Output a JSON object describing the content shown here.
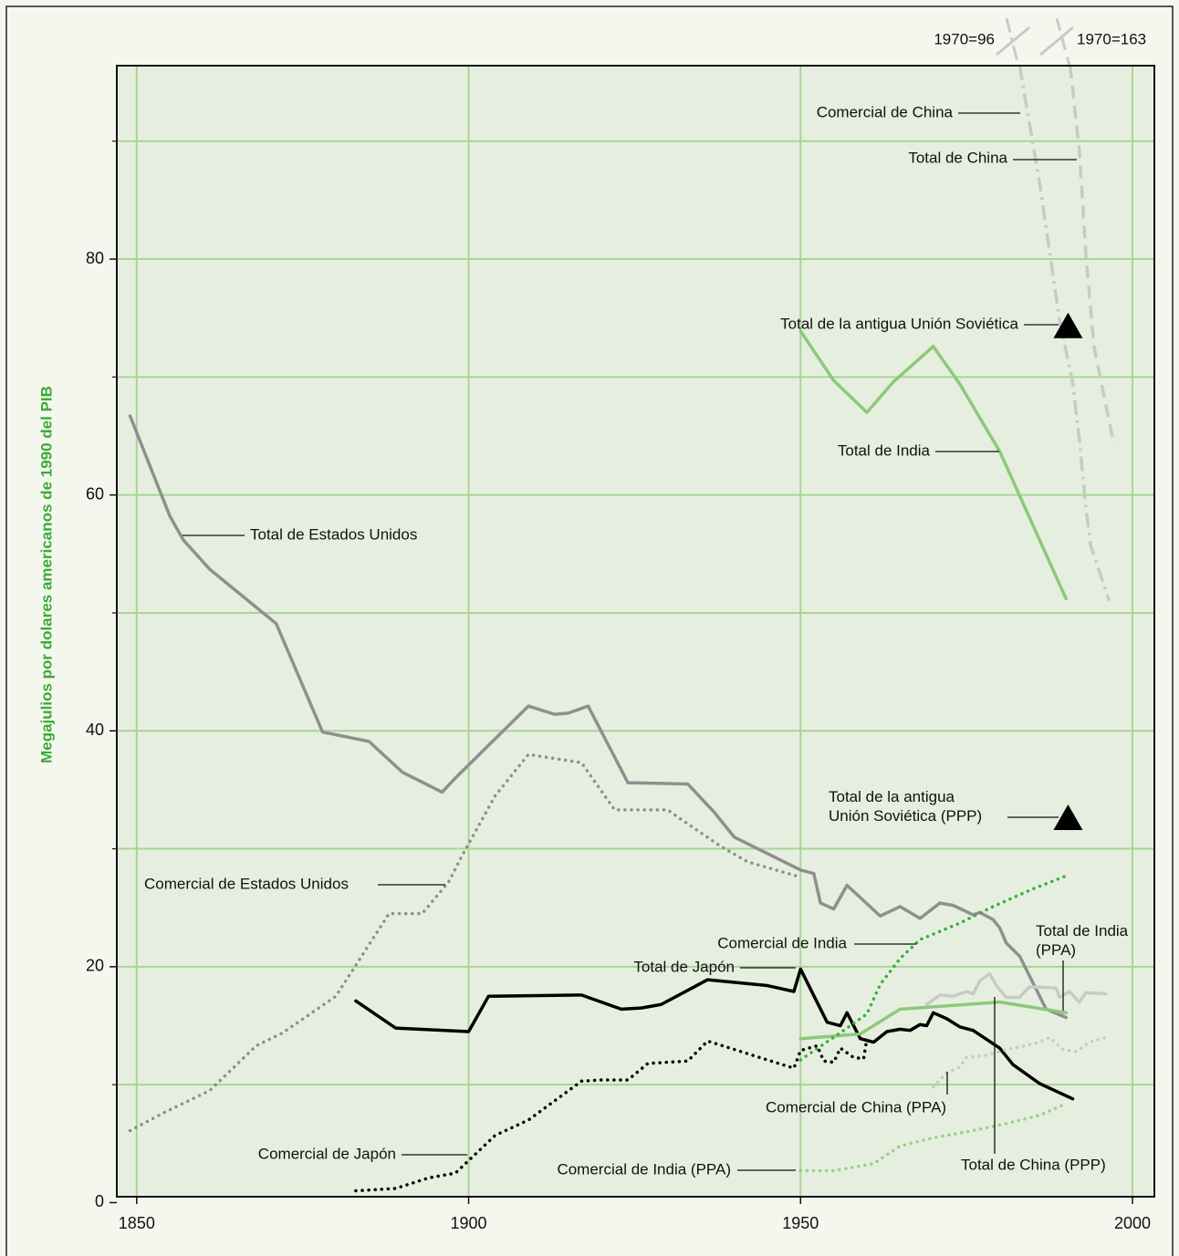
{
  "chart_data": {
    "type": "line",
    "y_label": "Megajulios por dolares americanos de 1990 del PIB",
    "xlim": [
      1847,
      2003.3
    ],
    "xticks": [
      1850,
      1900,
      1950,
      2000
    ],
    "ylim": [
      0.5,
      96.4
    ],
    "yticks": [
      0,
      20,
      40,
      60,
      80
    ],
    "yminor": [
      10,
      30,
      50,
      70,
      90
    ],
    "grid": true,
    "annotations": [
      "1970=96",
      "1970=163"
    ],
    "series": [
      {
        "name": "Total de Estados Unidos",
        "color": "#8f8f8f",
        "style": "solid",
        "x": [
          1849,
          1855,
          1857,
          1861,
          1871,
          1878,
          1885,
          1890,
          1896,
          1898,
          1909,
          1913,
          1915,
          1918,
          1924,
          1933,
          1937,
          1940,
          1950,
          1952,
          1953,
          1955,
          1957,
          1962,
          1965,
          1968,
          1971,
          1973,
          1976,
          1977,
          1979,
          1980,
          1981,
          1983,
          1987,
          1990
        ],
        "values": [
          66.7,
          58.2,
          56.2,
          53.7,
          49.1,
          39.9,
          39.1,
          36.5,
          34.8,
          36.0,
          42.1,
          41.4,
          41.5,
          42.1,
          35.6,
          35.5,
          33.1,
          31.0,
          28.2,
          27.9,
          25.4,
          24.9,
          26.9,
          24.3,
          25.1,
          24.1,
          25.4,
          25.2,
          24.4,
          24.6,
          24.0,
          23.3,
          22.0,
          20.9,
          16.4,
          15.7
        ]
      },
      {
        "name": "Comercial de Estados Unidos",
        "color": "#8f8f8f",
        "style": "dotted",
        "x": [
          1849,
          1854,
          1861,
          1868,
          1872,
          1880,
          1888,
          1893,
          1897,
          1899,
          1904,
          1909,
          1917,
          1922,
          1930,
          1932,
          1938,
          1942,
          1950
        ],
        "values": [
          6.1,
          7.6,
          9.5,
          13.3,
          14.4,
          17.5,
          24.5,
          24.5,
          27.2,
          29.4,
          34.5,
          38.0,
          37.3,
          33.3,
          33.3,
          32.5,
          30.2,
          28.9,
          27.6
        ]
      },
      {
        "name": "Total de Japón",
        "color": "#000000",
        "style": "solid",
        "x": [
          1883,
          1889,
          1900,
          1903,
          1917,
          1923,
          1926,
          1929,
          1936,
          1945,
          1949,
          1950,
          1954,
          1956,
          1957,
          1959,
          1961,
          1963,
          1965,
          1966.5,
          1968,
          1969,
          1970,
          1972,
          1974,
          1976,
          1980,
          1982,
          1986,
          1991
        ],
        "values": [
          17.1,
          14.8,
          14.5,
          17.5,
          17.6,
          16.4,
          16.5,
          16.8,
          18.9,
          18.4,
          17.9,
          19.8,
          15.3,
          15.0,
          16.1,
          13.9,
          13.6,
          14.5,
          14.7,
          14.6,
          15.1,
          15.0,
          16.1,
          15.6,
          14.9,
          14.6,
          13.1,
          11.7,
          10.1,
          8.8
        ]
      },
      {
        "name": "Comercial de Japón",
        "color": "#000000",
        "style": "dotted",
        "x": [
          1883,
          1889,
          1894,
          1898,
          1904,
          1909,
          1917,
          1920,
          1924,
          1927,
          1933,
          1936,
          1945,
          1949,
          1950,
          1952.5,
          1953.5,
          1955,
          1956,
          1958,
          1959.5,
          1960
        ],
        "values": [
          1.0,
          1.2,
          2.1,
          2.5,
          5.7,
          7.0,
          10.3,
          10.4,
          10.4,
          11.8,
          12.0,
          13.7,
          12.1,
          11.4,
          12.9,
          13.3,
          12.0,
          11.9,
          13.1,
          12.3,
          12.2,
          13.9
        ]
      },
      {
        "name": "Total de India",
        "color": "#8cc97a",
        "style": "solid",
        "x": [
          1950,
          1955,
          1960,
          1964,
          1970,
          1974,
          1980,
          1990
        ],
        "values": [
          73.9,
          69.7,
          67.0,
          69.6,
          72.6,
          69.4,
          63.7,
          51.2
        ]
      },
      {
        "name": "Total de India (PPA)",
        "color": "#8cc97a",
        "style": "solid",
        "x": [
          1950,
          1959,
          1965,
          1980,
          1990
        ],
        "values": [
          13.9,
          14.3,
          16.4,
          17.0,
          16.1
        ]
      },
      {
        "name": "Comercial de India",
        "color": "#3cad3c",
        "style": "dotted",
        "x": [
          1950,
          1956,
          1960,
          1962,
          1965,
          1968,
          1974,
          1979,
          1985,
          1990
        ],
        "values": [
          12.1,
          14.4,
          16.0,
          18.5,
          20.7,
          22.3,
          23.7,
          25.1,
          26.6,
          27.7
        ]
      },
      {
        "name": "Comercial de India (PPA)",
        "color": "#9ad08c",
        "style": "dotted",
        "x": [
          1950,
          1955,
          1961,
          1965,
          1970,
          1975,
          1981,
          1986,
          1990
        ],
        "values": [
          2.7,
          2.7,
          3.3,
          4.8,
          5.5,
          6.0,
          6.7,
          7.4,
          8.4
        ]
      },
      {
        "name": "Total de China (PPP)",
        "color": "#c9c9c9",
        "style": "solid",
        "x": [
          1969,
          1971,
          1973,
          1975,
          1976,
          1977,
          1978.5,
          1979.5,
          1981,
          1983,
          1984.5,
          1988.5,
          1989,
          1990.5,
          1992,
          1993,
          1996
        ],
        "values": [
          16.8,
          17.6,
          17.5,
          17.9,
          17.7,
          18.8,
          19.4,
          18.4,
          17.4,
          17.4,
          18.3,
          18.2,
          17.4,
          17.9,
          17.0,
          17.8,
          17.7
        ]
      },
      {
        "name": "Comercial de China (PPA)",
        "color": "#c9c9c9",
        "style": "dotted",
        "x": [
          1970,
          1972,
          1974,
          1975,
          1978,
          1981,
          1983,
          1986,
          1987.5,
          1989.5,
          1991.5,
          1993.5,
          1996
        ],
        "values": [
          9.8,
          11.0,
          11.5,
          12.3,
          12.5,
          13.0,
          13.2,
          13.6,
          14.0,
          13.0,
          12.8,
          13.6,
          14.0
        ]
      },
      {
        "name": "Comercial de China",
        "color": "#c9c9c9",
        "style": "dashdot",
        "x": [
          1983,
          1986,
          1989,
          1991,
          1992,
          1993,
          1993.7,
          1996.5
        ],
        "values": [
          96.4,
          86.5,
          74.9,
          69.5,
          64.8,
          58.8,
          55.7,
          51.0
        ]
      },
      {
        "name": "Total de China",
        "color": "#c9c9c9",
        "style": "dashed",
        "x": [
          1990.6,
          1992,
          1993,
          1994.2,
          1997.2
        ],
        "values": [
          96.4,
          89.2,
          80.3,
          72.6,
          64.3
        ]
      },
      {
        "name": "Total de la antigua Unión Soviética",
        "color": "#000000",
        "style": "triangle",
        "x": [
          1990.3
        ],
        "values": [
          74.3
        ]
      },
      {
        "name": "Total de la antigua Unión Soviética (PPP)",
        "color": "#000000",
        "style": "triangle",
        "x": [
          1990.3
        ],
        "values": [
          32.6
        ]
      }
    ]
  }
}
